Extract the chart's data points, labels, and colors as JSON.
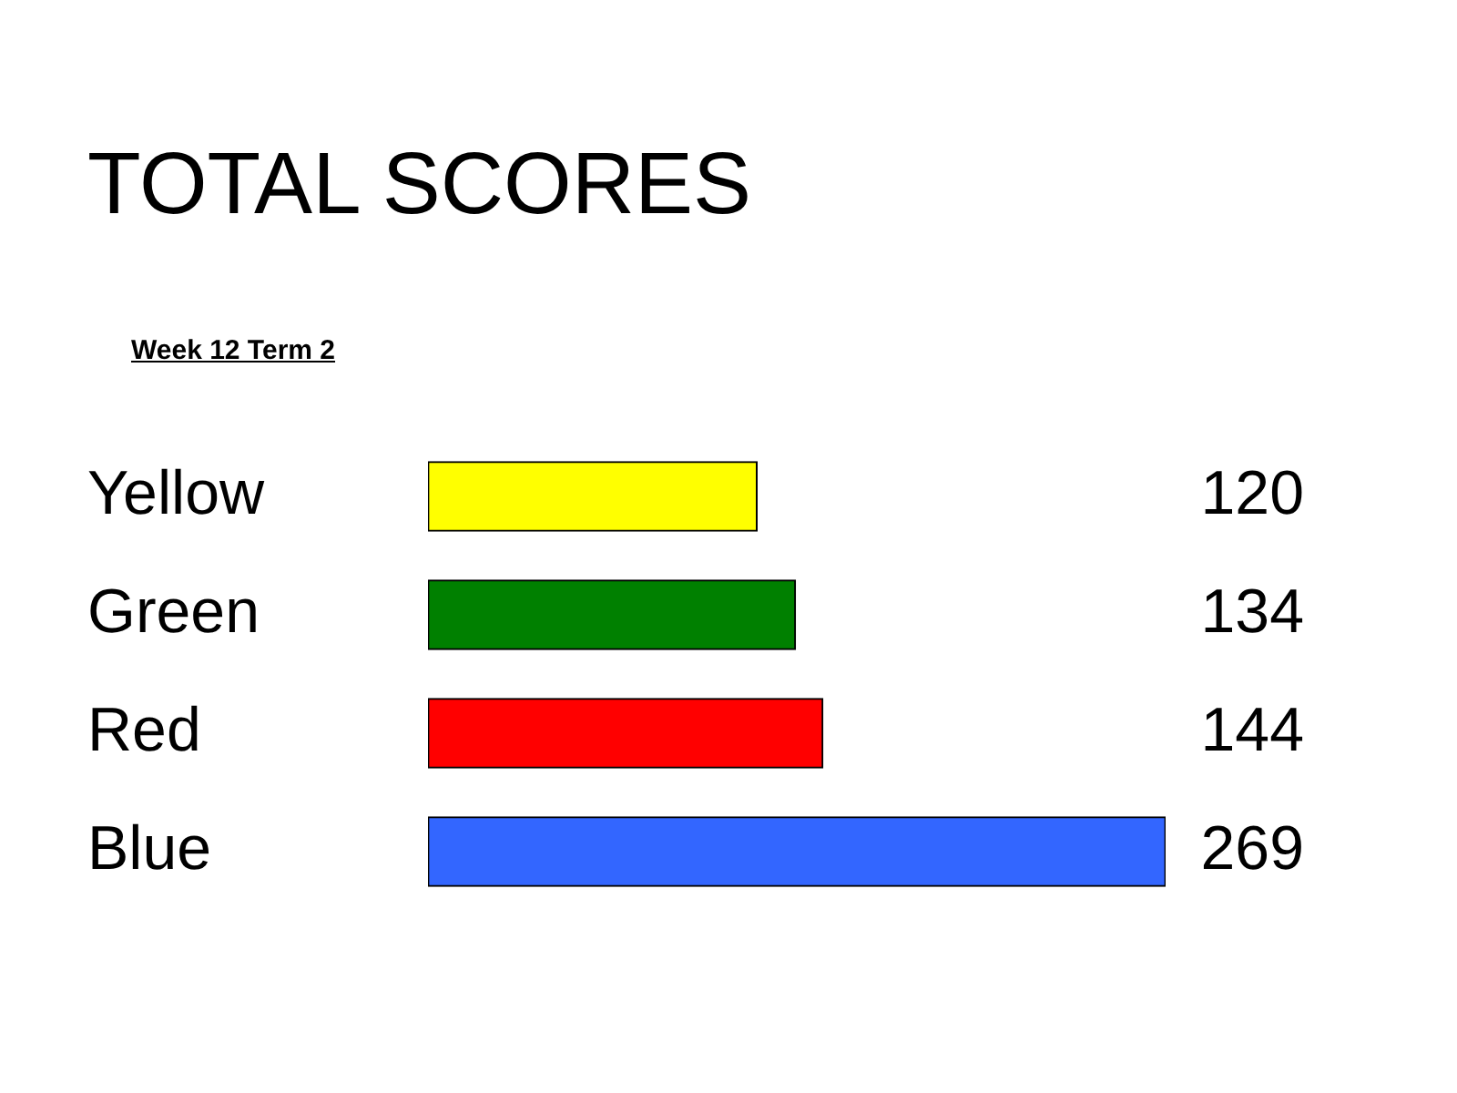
{
  "chart_data": {
    "type": "bar",
    "orientation": "horizontal",
    "title": "TOTAL SCORES",
    "subtitle": "Week 12 Term 2",
    "categories": [
      "Yellow",
      "Green",
      "Red",
      "Blue"
    ],
    "values": [
      120,
      134,
      144,
      269
    ],
    "colors": [
      "#ffff00",
      "#008000",
      "#ff0000",
      "#3366ff"
    ],
    "data_labels": true
  }
}
